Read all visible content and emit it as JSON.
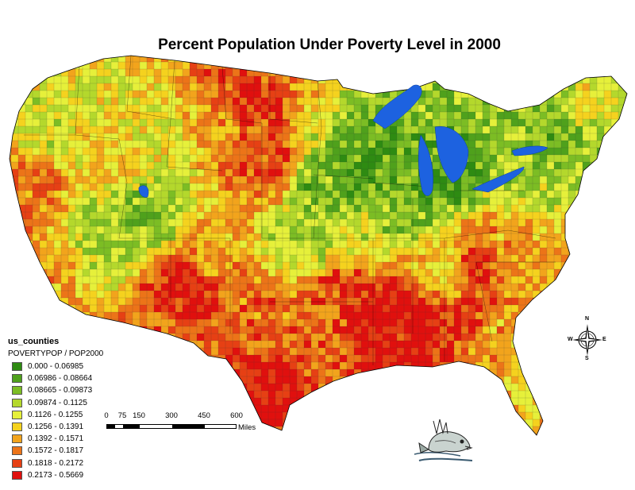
{
  "title": "Percent Population Under Poverty Level in 2000",
  "legend": {
    "layer": "us_counties",
    "field": "POVERTYPOP / POP2000",
    "classes": [
      {
        "label": "0.000 - 0.06985",
        "color": "#2e8b12"
      },
      {
        "label": "0.06986 - 0.08664",
        "color": "#4fa11c"
      },
      {
        "label": "0.08665 - 0.09873",
        "color": "#7cbd24"
      },
      {
        "label": "0.09874 - 0.1125",
        "color": "#b4d82c"
      },
      {
        "label": "0.1126 - 0.1255",
        "color": "#e6f03a"
      },
      {
        "label": "0.1256 - 0.1391",
        "color": "#f5d21e"
      },
      {
        "label": "0.1392 - 0.1571",
        "color": "#f2a41c"
      },
      {
        "label": "0.1572 - 0.1817",
        "color": "#ec7418"
      },
      {
        "label": "0.1818 - 0.2172",
        "color": "#e64014"
      },
      {
        "label": "0.2173 - 0.5669",
        "color": "#e0100e"
      }
    ]
  },
  "scalebar": {
    "ticks": [
      "0",
      "75",
      "150",
      "300",
      "450",
      "600"
    ],
    "units": "Miles"
  },
  "compass": {
    "n": "N",
    "s": "S",
    "e": "E",
    "w": "W"
  },
  "water_color": "#1d62e0",
  "icons": {
    "compass": "compass-rose-icon",
    "logo": "fish-logo-icon"
  }
}
